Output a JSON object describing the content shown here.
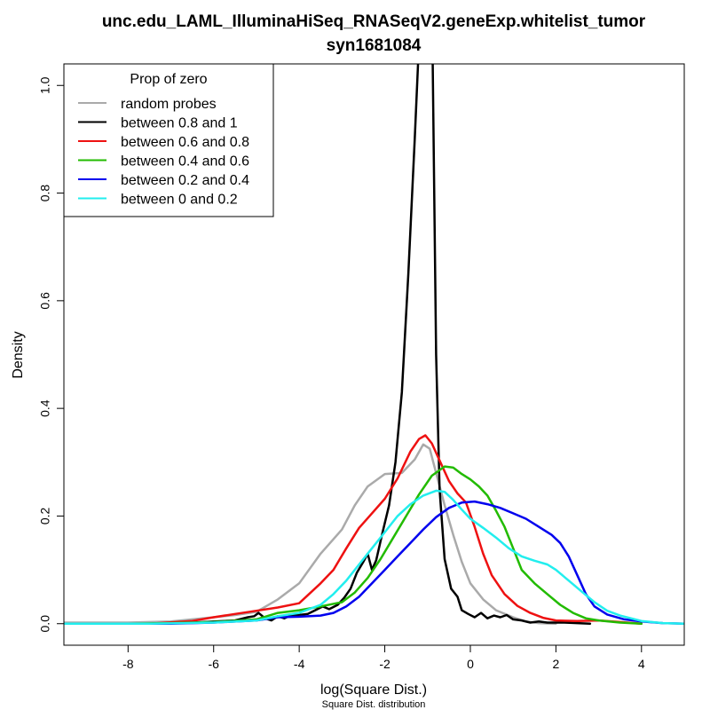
{
  "chart_data": {
    "type": "line",
    "title": "unc.edu_LAML_IlluminaHiSeq_RNASeqV2.geneExp.whitelist_tumor",
    "subtitle": "syn1681084",
    "xlabel": "log(Square Dist.)",
    "sublabel": "Square Dist. distribution",
    "ylabel": "Density",
    "xlim": [
      -9.5,
      5.0
    ],
    "ylim": [
      -0.04,
      1.04
    ],
    "x_ticks": [
      -8,
      -6,
      -4,
      -2,
      0,
      2,
      4
    ],
    "x_tick_labels": [
      "-8",
      "-6",
      "-4",
      "-2",
      "0",
      "2",
      "4"
    ],
    "y_ticks": [
      0.0,
      0.2,
      0.4,
      0.6,
      0.8,
      1.0
    ],
    "y_tick_labels": [
      "0.0",
      "0.2",
      "0.4",
      "0.6",
      "0.8",
      "1.0"
    ],
    "grid": false,
    "legend": {
      "title": "Prop of zero",
      "position": "top-left"
    },
    "series": [
      {
        "name": "random probes",
        "color": "#aaaaaa",
        "points": [
          [
            -9.5,
            0.002
          ],
          [
            -8,
            0.002
          ],
          [
            -7,
            0.004
          ],
          [
            -6.5,
            0.008
          ],
          [
            -6,
            0.012
          ],
          [
            -5.5,
            0.016
          ],
          [
            -5,
            0.022
          ],
          [
            -4.5,
            0.045
          ],
          [
            -4,
            0.075
          ],
          [
            -3.5,
            0.13
          ],
          [
            -3,
            0.175
          ],
          [
            -2.7,
            0.22
          ],
          [
            -2.4,
            0.255
          ],
          [
            -2,
            0.278
          ],
          [
            -1.6,
            0.28
          ],
          [
            -1.3,
            0.305
          ],
          [
            -1.1,
            0.333
          ],
          [
            -0.95,
            0.325
          ],
          [
            -0.8,
            0.28
          ],
          [
            -0.6,
            0.22
          ],
          [
            -0.4,
            0.165
          ],
          [
            -0.2,
            0.115
          ],
          [
            0,
            0.075
          ],
          [
            0.3,
            0.045
          ],
          [
            0.6,
            0.025
          ],
          [
            1,
            0.012
          ],
          [
            1.3,
            0.004
          ],
          [
            1.6,
            0.001
          ],
          [
            2,
            0.0
          ]
        ]
      },
      {
        "name": "between 0.8 and 1",
        "color": "#000000",
        "points": [
          [
            -7.5,
            0.0
          ],
          [
            -6.5,
            0.002
          ],
          [
            -5.5,
            0.006
          ],
          [
            -5.2,
            0.012
          ],
          [
            -5.05,
            0.014
          ],
          [
            -4.95,
            0.02
          ],
          [
            -4.8,
            0.01
          ],
          [
            -4.65,
            0.006
          ],
          [
            -4.5,
            0.014
          ],
          [
            -4.35,
            0.01
          ],
          [
            -4.2,
            0.015
          ],
          [
            -4.0,
            0.016
          ],
          [
            -3.8,
            0.018
          ],
          [
            -3.6,
            0.026
          ],
          [
            -3.45,
            0.032
          ],
          [
            -3.3,
            0.027
          ],
          [
            -3.1,
            0.035
          ],
          [
            -2.95,
            0.048
          ],
          [
            -2.8,
            0.065
          ],
          [
            -2.65,
            0.095
          ],
          [
            -2.5,
            0.115
          ],
          [
            -2.4,
            0.13
          ],
          [
            -2.3,
            0.1
          ],
          [
            -2.2,
            0.118
          ],
          [
            -2.05,
            0.17
          ],
          [
            -1.9,
            0.22
          ],
          [
            -1.75,
            0.3
          ],
          [
            -1.6,
            0.43
          ],
          [
            -1.45,
            0.65
          ],
          [
            -1.3,
            0.9
          ],
          [
            -1.2,
            1.08
          ],
          [
            -1.1,
            1.12
          ],
          [
            -0.95,
            1.12
          ],
          [
            -0.88,
            1.05
          ],
          [
            -0.8,
            0.5
          ],
          [
            -0.72,
            0.25
          ],
          [
            -0.6,
            0.12
          ],
          [
            -0.45,
            0.065
          ],
          [
            -0.3,
            0.05
          ],
          [
            -0.2,
            0.025
          ],
          [
            -0.05,
            0.018
          ],
          [
            0.1,
            0.012
          ],
          [
            0.25,
            0.02
          ],
          [
            0.4,
            0.01
          ],
          [
            0.55,
            0.015
          ],
          [
            0.7,
            0.012
          ],
          [
            0.85,
            0.016
          ],
          [
            1.0,
            0.008
          ],
          [
            1.2,
            0.006
          ],
          [
            1.4,
            0.002
          ],
          [
            1.6,
            0.004
          ],
          [
            1.8,
            0.002
          ],
          [
            2.0,
            0.002
          ],
          [
            2.2,
            0.002
          ],
          [
            2.5,
            0.001
          ],
          [
            2.8,
            0.0
          ]
        ]
      },
      {
        "name": "between 0.6 and 0.8",
        "color": "#ee1111",
        "points": [
          [
            -9.5,
            0.0
          ],
          [
            -7.5,
            0.0
          ],
          [
            -6.5,
            0.005
          ],
          [
            -6,
            0.012
          ],
          [
            -5.5,
            0.018
          ],
          [
            -5,
            0.024
          ],
          [
            -4.5,
            0.03
          ],
          [
            -4,
            0.038
          ],
          [
            -3.5,
            0.075
          ],
          [
            -3.2,
            0.1
          ],
          [
            -2.9,
            0.14
          ],
          [
            -2.6,
            0.178
          ],
          [
            -2.3,
            0.205
          ],
          [
            -2,
            0.232
          ],
          [
            -1.7,
            0.27
          ],
          [
            -1.4,
            0.32
          ],
          [
            -1.2,
            0.343
          ],
          [
            -1.05,
            0.35
          ],
          [
            -0.9,
            0.335
          ],
          [
            -0.7,
            0.3
          ],
          [
            -0.5,
            0.265
          ],
          [
            -0.3,
            0.242
          ],
          [
            -0.1,
            0.225
          ],
          [
            0.1,
            0.18
          ],
          [
            0.3,
            0.13
          ],
          [
            0.5,
            0.09
          ],
          [
            0.8,
            0.055
          ],
          [
            1.1,
            0.033
          ],
          [
            1.4,
            0.02
          ],
          [
            1.7,
            0.011
          ],
          [
            2,
            0.006
          ],
          [
            2.5,
            0.005
          ],
          [
            3,
            0.006
          ],
          [
            3.5,
            0.003
          ],
          [
            4,
            0.0
          ]
        ]
      },
      {
        "name": "between 0.4 and 0.6",
        "color": "#22bb00",
        "points": [
          [
            -9.5,
            0.0
          ],
          [
            -8,
            0.0
          ],
          [
            -7,
            0.001
          ],
          [
            -6,
            0.003
          ],
          [
            -5,
            0.008
          ],
          [
            -4.5,
            0.02
          ],
          [
            -4,
            0.025
          ],
          [
            -3.5,
            0.032
          ],
          [
            -3,
            0.04
          ],
          [
            -2.7,
            0.058
          ],
          [
            -2.4,
            0.085
          ],
          [
            -2.1,
            0.12
          ],
          [
            -1.8,
            0.16
          ],
          [
            -1.5,
            0.2
          ],
          [
            -1.2,
            0.24
          ],
          [
            -0.9,
            0.275
          ],
          [
            -0.6,
            0.292
          ],
          [
            -0.4,
            0.29
          ],
          [
            -0.2,
            0.278
          ],
          [
            0,
            0.268
          ],
          [
            0.2,
            0.255
          ],
          [
            0.4,
            0.238
          ],
          [
            0.6,
            0.21
          ],
          [
            0.8,
            0.18
          ],
          [
            1,
            0.14
          ],
          [
            1.2,
            0.1
          ],
          [
            1.5,
            0.075
          ],
          [
            1.8,
            0.055
          ],
          [
            2.1,
            0.035
          ],
          [
            2.4,
            0.02
          ],
          [
            2.7,
            0.01
          ],
          [
            3,
            0.006
          ],
          [
            3.5,
            0.002
          ],
          [
            4,
            0.0
          ]
        ]
      },
      {
        "name": "between 0.2 and 0.4",
        "color": "#0000ee",
        "points": [
          [
            -9.5,
            0.0
          ],
          [
            -7,
            0.0
          ],
          [
            -6,
            0.002
          ],
          [
            -5,
            0.006
          ],
          [
            -4.5,
            0.012
          ],
          [
            -4,
            0.013
          ],
          [
            -3.5,
            0.015
          ],
          [
            -3.2,
            0.02
          ],
          [
            -2.9,
            0.032
          ],
          [
            -2.6,
            0.05
          ],
          [
            -2.3,
            0.075
          ],
          [
            -2.0,
            0.1
          ],
          [
            -1.7,
            0.125
          ],
          [
            -1.4,
            0.15
          ],
          [
            -1.1,
            0.175
          ],
          [
            -0.8,
            0.198
          ],
          [
            -0.5,
            0.215
          ],
          [
            -0.2,
            0.225
          ],
          [
            0.1,
            0.227
          ],
          [
            0.4,
            0.222
          ],
          [
            0.7,
            0.215
          ],
          [
            1.0,
            0.205
          ],
          [
            1.3,
            0.195
          ],
          [
            1.6,
            0.18
          ],
          [
            1.9,
            0.165
          ],
          [
            2.1,
            0.15
          ],
          [
            2.3,
            0.125
          ],
          [
            2.5,
            0.09
          ],
          [
            2.7,
            0.055
          ],
          [
            2.9,
            0.032
          ],
          [
            3.2,
            0.017
          ],
          [
            3.6,
            0.008
          ],
          [
            4,
            0.004
          ],
          [
            4.5,
            0.001
          ],
          [
            5,
            0.0
          ]
        ]
      },
      {
        "name": "between 0 and 0.2",
        "color": "#22eeee",
        "points": [
          [
            -9.5,
            0.0
          ],
          [
            -7.5,
            0.0
          ],
          [
            -6,
            0.002
          ],
          [
            -5,
            0.006
          ],
          [
            -4.5,
            0.014
          ],
          [
            -4,
            0.02
          ],
          [
            -3.5,
            0.035
          ],
          [
            -3.2,
            0.055
          ],
          [
            -2.9,
            0.08
          ],
          [
            -2.6,
            0.11
          ],
          [
            -2.3,
            0.14
          ],
          [
            -2.0,
            0.17
          ],
          [
            -1.7,
            0.2
          ],
          [
            -1.4,
            0.222
          ],
          [
            -1.1,
            0.238
          ],
          [
            -0.8,
            0.247
          ],
          [
            -0.6,
            0.245
          ],
          [
            -0.4,
            0.23
          ],
          [
            -0.2,
            0.212
          ],
          [
            0,
            0.195
          ],
          [
            0.3,
            0.178
          ],
          [
            0.6,
            0.16
          ],
          [
            0.9,
            0.14
          ],
          [
            1.2,
            0.125
          ],
          [
            1.5,
            0.117
          ],
          [
            1.8,
            0.11
          ],
          [
            2.0,
            0.1
          ],
          [
            2.3,
            0.08
          ],
          [
            2.6,
            0.06
          ],
          [
            2.9,
            0.04
          ],
          [
            3.2,
            0.024
          ],
          [
            3.5,
            0.015
          ],
          [
            4,
            0.005
          ],
          [
            4.5,
            0.001
          ],
          [
            5,
            0.0
          ]
        ]
      }
    ]
  }
}
